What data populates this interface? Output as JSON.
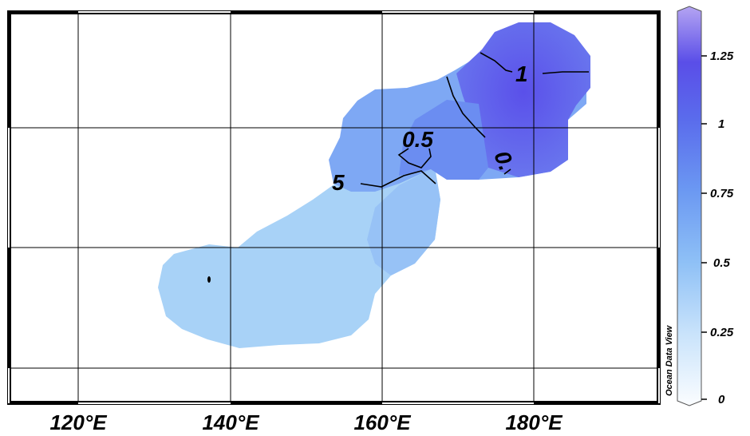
{
  "map": {
    "x_ticks": [
      "120°E",
      "140°E",
      "160°E",
      "180°E"
    ],
    "contour_labels": [
      "1",
      "0.5",
      "0.",
      "5"
    ],
    "watermark": "Ocean Data View"
  },
  "colorbar": {
    "ticks": [
      "1.25",
      "1",
      "0.75",
      "0.5",
      "0.25",
      "0"
    ],
    "range": [
      0,
      1.4
    ],
    "colors": {
      "low": "#f4f8ff",
      "mid": "#7aa7f5",
      "high": "#5a4ee8",
      "top": "#a895f0"
    }
  },
  "colors": {
    "field_light": "#a7d0f7",
    "field_mid": "#7ba8f5",
    "field_high": "#5e63ec",
    "frame": "#000000",
    "grid": "#000000"
  }
}
